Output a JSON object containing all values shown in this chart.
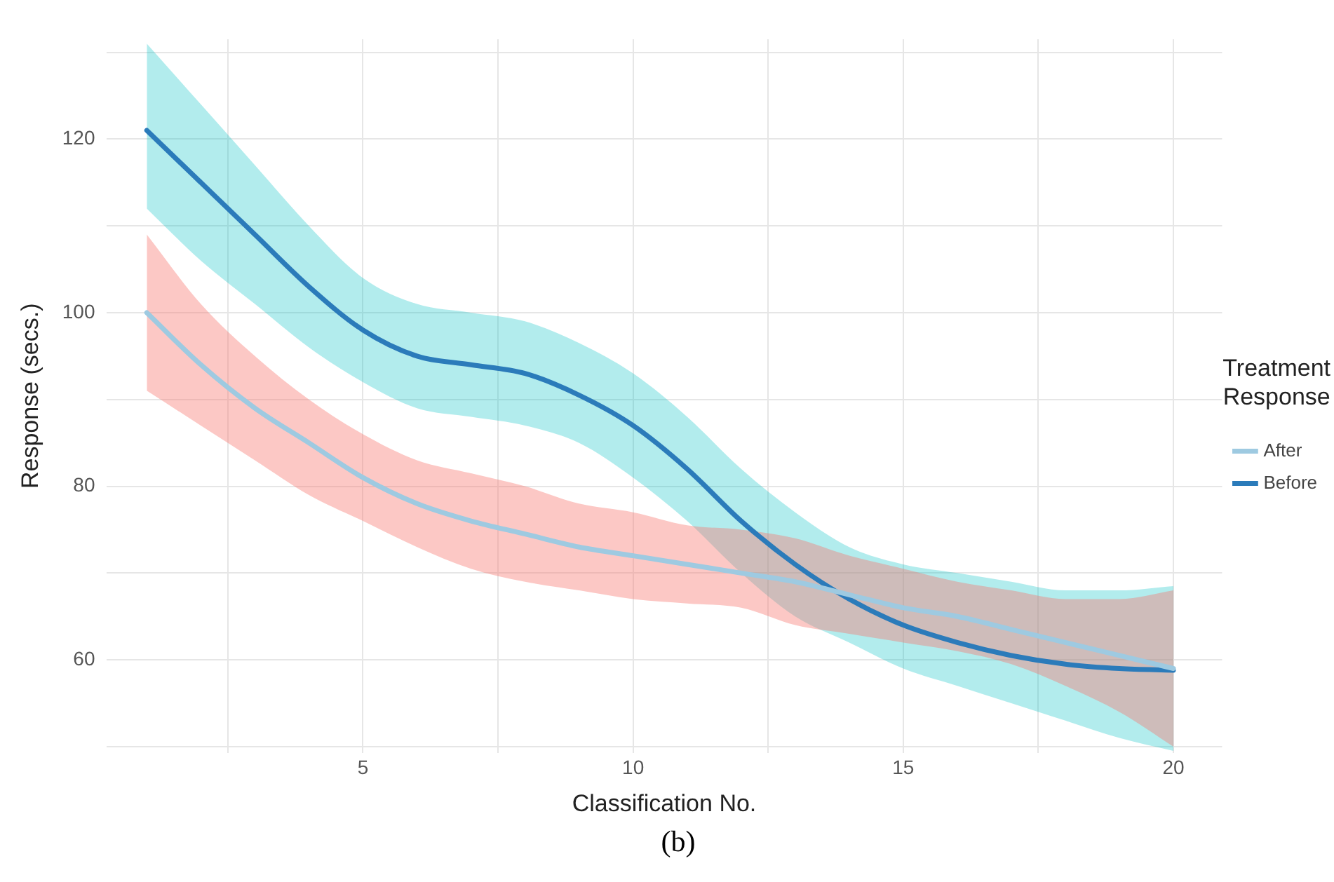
{
  "chart_data": {
    "type": "line",
    "xlabel": "Classification No.",
    "ylabel": "Response (secs.)",
    "legend_title": "Treatment\nResponse",
    "legend": "right",
    "grid": true,
    "marker": "none",
    "line_style": "solid",
    "x": [
      1,
      2,
      3,
      4,
      5,
      6,
      7,
      8,
      9,
      10,
      11,
      12,
      13,
      14,
      15,
      16,
      17,
      18,
      19,
      20
    ],
    "xlim": [
      0.25,
      20.9
    ],
    "xticks": [
      {
        "value": 2.5,
        "label": null
      },
      5,
      {
        "value": 7.5,
        "label": null
      },
      10,
      {
        "value": 12.5,
        "label": null
      },
      15,
      {
        "value": 17.5,
        "label": null
      },
      20
    ],
    "ylim": [
      49.3,
      131.5
    ],
    "yticks": [
      {
        "value": 50,
        "label": null
      },
      60,
      {
        "value": 70,
        "label": null
      },
      80,
      {
        "value": 90,
        "label": null
      },
      100,
      {
        "value": 110,
        "label": null
      },
      120,
      {
        "value": 130,
        "label": null
      }
    ],
    "series": [
      {
        "name": "After",
        "color": "#9ecae1",
        "values": [
          100,
          94,
          89,
          85,
          81,
          78,
          76,
          74.5,
          73,
          72,
          71,
          70,
          69,
          67.5,
          66,
          65,
          63.5,
          62,
          60.5,
          59
        ],
        "lower": [
          91,
          87,
          83,
          79,
          76,
          73,
          70.5,
          69,
          68,
          67,
          66.5,
          66,
          64,
          63,
          62,
          61,
          59.5,
          57,
          54,
          50
        ],
        "upper": [
          109,
          101,
          95,
          90,
          86,
          83,
          81.5,
          80,
          78,
          77,
          75.5,
          75,
          74,
          72,
          70.5,
          69,
          68,
          67,
          67,
          68
        ]
      },
      {
        "name": "Before",
        "color": "#2b7bba",
        "values": [
          121,
          115,
          109,
          103,
          98,
          95,
          94,
          93,
          90.5,
          87,
          82,
          76,
          71,
          67,
          64,
          62,
          60.5,
          59.5,
          59,
          58.8
        ],
        "lower": [
          112,
          106,
          101,
          96,
          92,
          89,
          88,
          87,
          85,
          81,
          76,
          70,
          65,
          62,
          59,
          57,
          55,
          53,
          51,
          49.5
        ],
        "upper": [
          131,
          124,
          117,
          110,
          104,
          101,
          100,
          99,
          96.5,
          93,
          88,
          82,
          77,
          73,
          71,
          70,
          69,
          68,
          68,
          68.5
        ]
      }
    ],
    "annotations": [
      "(b)"
    ]
  }
}
